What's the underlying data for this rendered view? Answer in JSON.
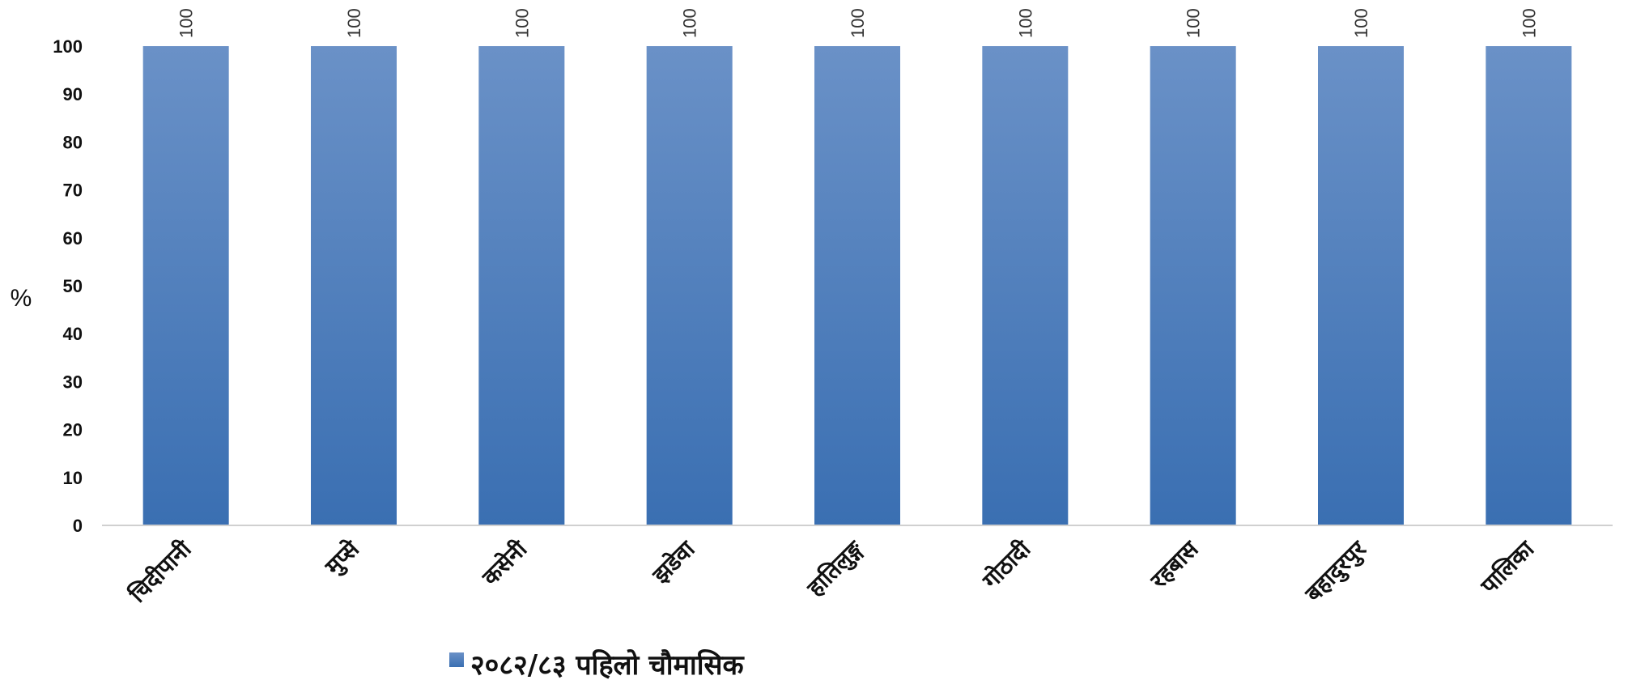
{
  "chart_data": {
    "type": "bar",
    "categories": [
      "चिदीपानी",
      "मुप्से",
      "कसेनी",
      "झडेवा",
      "हातिलुङ्ग",
      "गोठादी",
      "रहबास",
      "बहादुरपुर",
      "पालिका"
    ],
    "series": [
      {
        "name": "२०८२/८३ पहिलो चौमासिक",
        "values": [
          100,
          100,
          100,
          100,
          100,
          100,
          100,
          100,
          100
        ]
      }
    ],
    "data_labels": [
      "100",
      "100",
      "100",
      "100",
      "100",
      "100",
      "100",
      "100",
      "100"
    ],
    "ylabel": "%",
    "ylim": [
      0,
      100
    ],
    "yticks": [
      "0",
      "10",
      "20",
      "30",
      "40",
      "50",
      "60",
      "70",
      "80",
      "90",
      "100"
    ],
    "grid": false,
    "legend": "bottom",
    "colors": {
      "bar_top": "#6a91c7",
      "bar_bottom": "#3a6fb2",
      "axis": "#d0d0d0"
    }
  }
}
